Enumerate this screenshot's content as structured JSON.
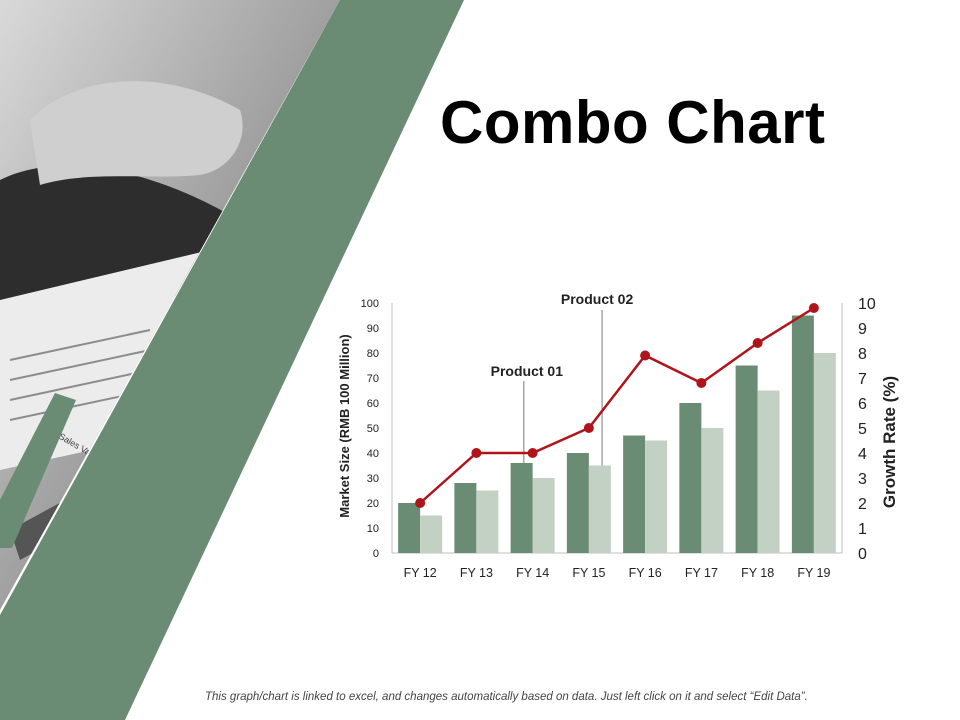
{
  "slide": {
    "title": "Combo Chart",
    "footer": "This graph/chart is linked to excel, and changes automatically based on data. Just left click on it and select “Edit Data”.",
    "photo_text": "Sales Values"
  },
  "colors": {
    "accent_green": "#6b8c74",
    "product_01": "#6b8c74",
    "product_02": "#c3d1c4",
    "growth_line": "#b0141b"
  },
  "chart_data": {
    "type": "bar",
    "categories": [
      "FY 12",
      "FY 13",
      "FY 14",
      "FY 15",
      "FY 16",
      "FY 17",
      "FY 18",
      "FY 19"
    ],
    "series": [
      {
        "name": "Product 01",
        "type": "bar",
        "axis": "left",
        "values": [
          20,
          28,
          36,
          40,
          47,
          60,
          75,
          95
        ]
      },
      {
        "name": "Product 02",
        "type": "bar",
        "axis": "left",
        "values": [
          15,
          25,
          30,
          35,
          45,
          50,
          65,
          80
        ]
      },
      {
        "type": "line",
        "axis": "right",
        "values": [
          2,
          4,
          4,
          5,
          7.9,
          6.8,
          8.4,
          9.8
        ]
      }
    ],
    "ylabel": "Market Size (RMB 100 Million)",
    "ylim": [
      0,
      100
    ],
    "yticks": [
      0,
      10,
      20,
      30,
      40,
      50,
      60,
      70,
      80,
      90,
      100
    ],
    "y2label": "Growth Rate (%)",
    "y2lim": [
      0,
      10
    ],
    "y2ticks": [
      0,
      1,
      2,
      3,
      4,
      5,
      6,
      7,
      8,
      9,
      10
    ],
    "annotations": [
      "Product 01",
      "Product 02"
    ],
    "grid": false,
    "legend": "none"
  }
}
